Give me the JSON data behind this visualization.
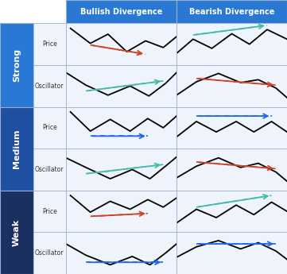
{
  "title_bullish": "Bullish Divergence",
  "title_bearish": "Bearish Divergence",
  "sub_labels": [
    "Price",
    "Oscillator",
    "Price",
    "Oscillator",
    "Price",
    "Oscillator"
  ],
  "header_bg": "#2979d4",
  "strong_bg": "#2979d4",
  "medium_bg": "#1e4fa0",
  "weak_bg": "#1a3060",
  "cell_bg": "#eef3fc",
  "border_color": "#9aadcc",
  "arrow_red": "#cc4422",
  "arrow_green": "#44bbaa",
  "arrow_blue": "#2266ee",
  "fig_width": 3.61,
  "fig_height": 3.45
}
